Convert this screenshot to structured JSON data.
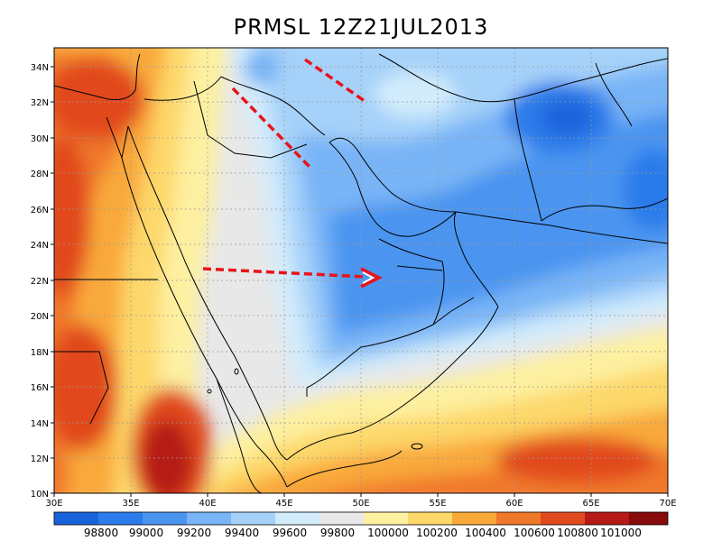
{
  "title": "PRMSL 12Z21JUL2013",
  "map": {
    "lon_range": [
      30,
      70
    ],
    "lat_range": [
      10,
      35
    ],
    "x_ticks": [
      "30E",
      "35E",
      "40E",
      "45E",
      "50E",
      "55E",
      "60E",
      "65E",
      "70E"
    ],
    "y_ticks": [
      "10N",
      "12N",
      "14N",
      "16N",
      "18N",
      "20N",
      "22N",
      "24N",
      "26N",
      "28N",
      "30N",
      "32N",
      "34N"
    ]
  },
  "colorbar": {
    "labels": [
      "98800",
      "99000",
      "99200",
      "99400",
      "99600",
      "99800",
      "100000",
      "100200",
      "100400",
      "100600",
      "100800",
      "101000"
    ],
    "colors": [
      "#1a62dc",
      "#2c7bea",
      "#4b95f0",
      "#78b4f6",
      "#a6d2f9",
      "#d2ecfb",
      "#e8e8e8",
      "#fdf0a0",
      "#fdd86a",
      "#f9a93a",
      "#f0782a",
      "#e14a1f",
      "#b51a16",
      "#870b0b"
    ]
  },
  "palette": {
    "arrow": "#e8141c",
    "border": "#000000"
  }
}
